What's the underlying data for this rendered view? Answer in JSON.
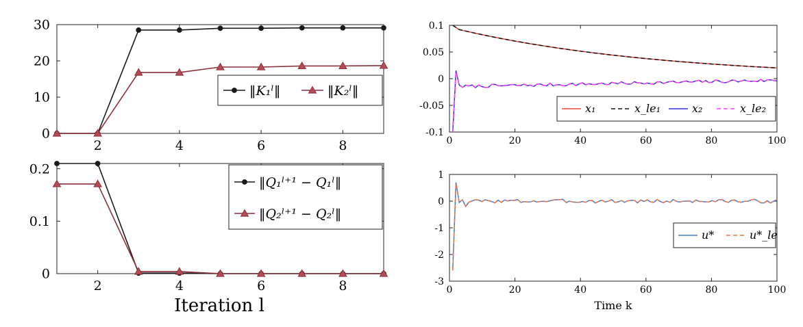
{
  "chart_data": [
    {
      "id": "K",
      "type": "line",
      "xlim": [
        1,
        9
      ],
      "ylim": [
        0,
        30
      ],
      "xticks": [
        "2",
        "4",
        "6",
        "8"
      ],
      "yticks": [
        "0",
        "10",
        "20",
        "30"
      ],
      "grid": false,
      "legend_position": "center-right",
      "x": [
        1,
        2,
        3,
        4,
        5,
        6,
        7,
        8,
        9
      ],
      "series": [
        {
          "name": "‖K₁ˡ‖",
          "color": "#1a1a1a",
          "marker": "dot",
          "values": [
            0,
            0,
            28.5,
            28.5,
            29.0,
            29.0,
            29.1,
            29.1,
            29.1
          ]
        },
        {
          "name": "‖K₂ˡ‖",
          "color": "#8b2f3a",
          "marker": "triangle",
          "values": [
            0,
            0,
            16.8,
            16.8,
            18.3,
            18.3,
            18.6,
            18.6,
            18.7
          ]
        }
      ]
    },
    {
      "id": "Q",
      "type": "line",
      "xlim": [
        1,
        9
      ],
      "ylim": [
        0,
        0.21
      ],
      "xticks": [
        "2",
        "4",
        "6",
        "8"
      ],
      "yticks": [
        "0",
        "0.1",
        "0.2"
      ],
      "grid": false,
      "legend_position": "top-right",
      "xlabel": "Iteration l",
      "x": [
        1,
        2,
        3,
        4,
        5,
        6,
        7,
        8,
        9
      ],
      "series": [
        {
          "name": "‖Q₁ˡ⁺¹ − Q₁ˡ‖",
          "color": "#1a1a1a",
          "marker": "dot",
          "values": [
            0.21,
            0.21,
            0.001,
            0.001,
            0.0,
            0.0,
            0.0,
            0.0,
            0.0
          ]
        },
        {
          "name": "‖Q₂ˡ⁺¹ − Q₂ˡ‖",
          "color": "#8b2f3a",
          "marker": "triangle",
          "values": [
            0.171,
            0.171,
            0.004,
            0.004,
            0.0,
            0.0,
            0.0,
            0.0,
            0.0
          ]
        }
      ]
    },
    {
      "id": "X",
      "type": "line",
      "xlim": [
        0,
        100
      ],
      "ylim": [
        -0.1,
        0.1
      ],
      "xticks": [
        "0",
        "20",
        "40",
        "60",
        "80",
        "100"
      ],
      "yticks": [
        "-0.1",
        "-0.05",
        "0",
        "0.05",
        "0.1"
      ],
      "grid": false,
      "legend_position": "bottom-right",
      "series": [
        {
          "name": "x₁",
          "color": "#e8453c",
          "style": "solid",
          "model": {
            "kind": "decay",
            "a": 0.092,
            "rate": 0.0155,
            "x0": 2,
            "v0": 0.1
          }
        },
        {
          "name": "x_le₁",
          "color": "#111111",
          "style": "dashed",
          "model": {
            "kind": "decay",
            "a": 0.092,
            "rate": 0.0155,
            "x0": 2,
            "v0": 0.1
          }
        },
        {
          "name": "x₂",
          "color": "#3a2fd6",
          "style": "solid",
          "model": {
            "kind": "noisy",
            "start": [
              -0.1,
              0.015,
              -0.012
            ],
            "level_from": -0.015,
            "level_to": -0.003,
            "amp": 0.003,
            "seed": 7
          }
        },
        {
          "name": "x_le₂",
          "color": "#ff3cf0",
          "style": "dashed",
          "model": {
            "kind": "noisy",
            "start": [
              -0.1,
              0.013,
              -0.011
            ],
            "level_from": -0.015,
            "level_to": -0.003,
            "amp": 0.003,
            "seed": 7
          }
        }
      ]
    },
    {
      "id": "U",
      "type": "line",
      "xlim": [
        0,
        100
      ],
      "ylim": [
        -3,
        1
      ],
      "xticks": [
        "0",
        "20",
        "40",
        "60",
        "80",
        "100"
      ],
      "yticks": [
        "-3",
        "-2",
        "-1",
        "0",
        "1"
      ],
      "grid": false,
      "legend_position": "bottom-right",
      "xlabel": "Time k",
      "series": [
        {
          "name": "u*",
          "color": "#3d7cc9",
          "style": "solid",
          "model": {
            "kind": "noisy",
            "start": [
              -2.6,
              0.7,
              -0.05,
              0.05,
              -0.2
            ],
            "level_from": 0,
            "level_to": 0,
            "amp": 0.07,
            "seed": 3
          }
        },
        {
          "name": "u*_le",
          "color": "#e8744a",
          "style": "dashed",
          "model": {
            "kind": "noisy",
            "start": [
              -2.6,
              0.68,
              -0.05,
              0.05,
              -0.2
            ],
            "level_from": 0,
            "level_to": 0,
            "amp": 0.07,
            "seed": 3
          }
        }
      ]
    }
  ]
}
